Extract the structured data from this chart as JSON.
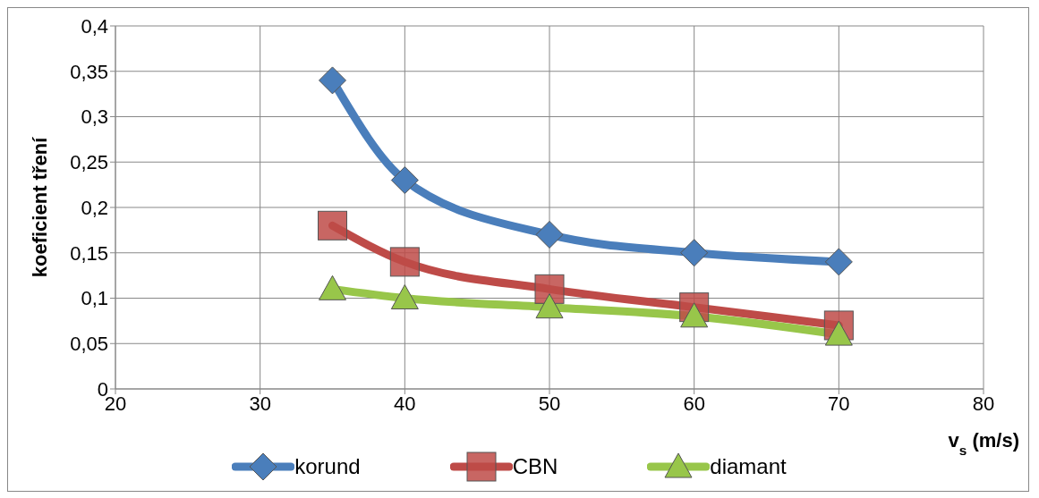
{
  "chart_data": {
    "type": "line",
    "ylabel": "koeficient tření",
    "xlabel": "v$_{s}$ (m/s)",
    "x": [
      35,
      40,
      50,
      60,
      70
    ],
    "series": [
      {
        "name": "korund",
        "color": "#4a7ebb",
        "marker": "diamond",
        "values": [
          0.34,
          0.23,
          0.17,
          0.15,
          0.14
        ]
      },
      {
        "name": "CBN",
        "color": "#be4b48",
        "marker": "square",
        "values": [
          0.18,
          0.14,
          0.11,
          0.09,
          0.07
        ]
      },
      {
        "name": "diamant",
        "color": "#98c64a",
        "marker": "triangle",
        "values": [
          0.11,
          0.1,
          0.09,
          0.08,
          0.06
        ]
      }
    ],
    "xlim": [
      20,
      80
    ],
    "xticks": [
      20,
      30,
      40,
      50,
      60,
      70,
      80
    ],
    "ylim": [
      0,
      0.4
    ],
    "yticks": [
      {
        "value": 0,
        "label": "0"
      },
      {
        "value": 0.05,
        "label": "0,05"
      },
      {
        "value": 0.1,
        "label": "0,1"
      },
      {
        "value": 0.15,
        "label": "0,15"
      },
      {
        "value": 0.2,
        "label": "0,2"
      },
      {
        "value": 0.25,
        "label": "0,25"
      },
      {
        "value": 0.3,
        "label": "0,3"
      },
      {
        "value": 0.35,
        "label": "0,35"
      },
      {
        "value": 0.4,
        "label": "0,4"
      }
    ],
    "grid": true,
    "legend": "bottom"
  }
}
